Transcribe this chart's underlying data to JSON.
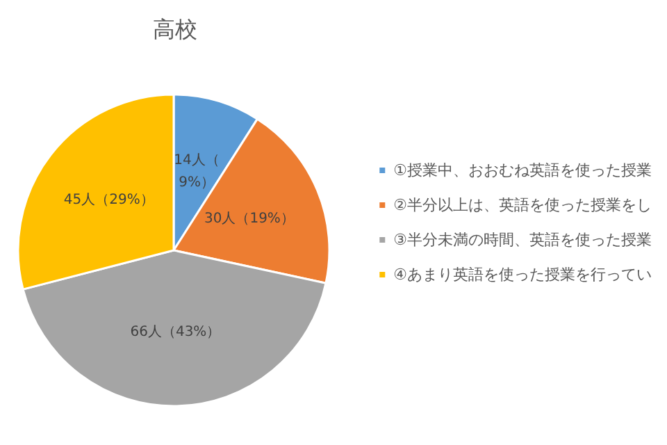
{
  "chart_data": {
    "type": "pie",
    "title": "高校",
    "categories": [
      "①授業中、おおむね英語を使った授業",
      "②半分以上は、英語を使った授業をし",
      "③半分未満の時間、英語を使った授業",
      "④あまり英語を使った授業を行ってい"
    ],
    "values": [
      14,
      30,
      66,
      45
    ],
    "colors": [
      "#5b9bd5",
      "#ed7d31",
      "#a5a5a5",
      "#ffc000"
    ],
    "value_labels": [
      "14人（9%）",
      "30人（19%）",
      "66人（43%）",
      "45人（29%）"
    ],
    "legend": "right"
  }
}
